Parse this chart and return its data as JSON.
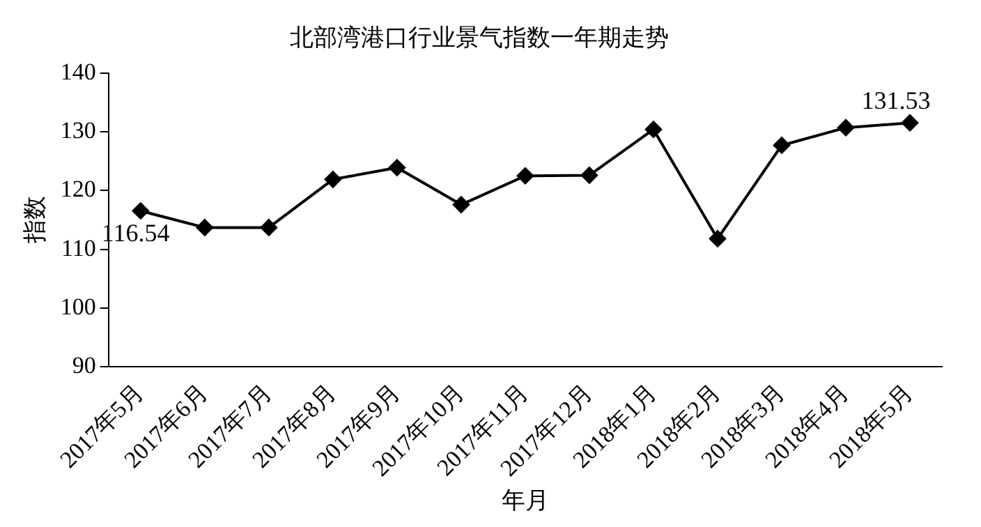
{
  "chart_data": {
    "type": "line",
    "title": "北部湾港口行业景气指数一年期走势",
    "xlabel": "年月",
    "ylabel": "指数",
    "categories": [
      "2017年5月",
      "2017年6月",
      "2017年7月",
      "2017年8月",
      "2017年9月",
      "2017年10月",
      "2017年11月",
      "2017年12月",
      "2018年1月",
      "2018年2月",
      "2018年3月",
      "2018年4月",
      "2018年5月"
    ],
    "series": [
      {
        "color": "#000000",
        "values": [
          116.54,
          113.7,
          113.7,
          121.9,
          123.9,
          117.6,
          122.5,
          122.6,
          130.4,
          111.8,
          127.7,
          130.7,
          131.53
        ],
        "value_labels": [
          "116.54",
          null,
          null,
          null,
          null,
          null,
          null,
          null,
          null,
          null,
          null,
          null,
          "131.53"
        ]
      }
    ],
    "ylim": [
      90,
      140
    ],
    "yticks": [
      90,
      100,
      110,
      120,
      130,
      140
    ],
    "grid": false,
    "legend": false,
    "marker": "diamond",
    "line_style": "solid"
  }
}
